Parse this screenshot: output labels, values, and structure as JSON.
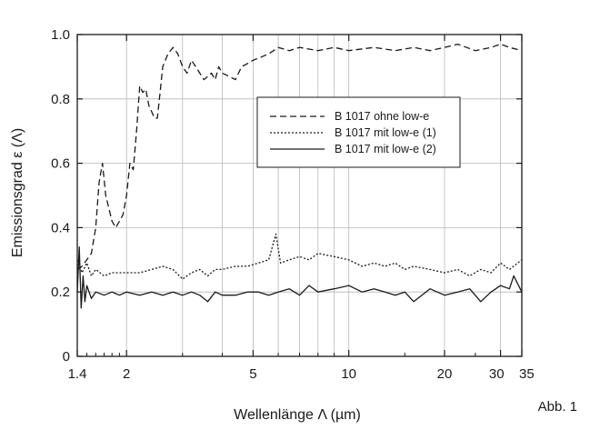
{
  "figure_label": "Abb. 1",
  "chart_data": {
    "type": "line",
    "title": "",
    "xlabel": "Wellenlänge Λ (µm)",
    "ylabel": "Emissionsgrad ε (Λ)",
    "x_scale": "log",
    "xlim": [
      1.4,
      35
    ],
    "ylim": [
      0,
      1.0
    ],
    "grid": true,
    "legend_position": "inside-top-right",
    "x_ticks": [
      1.4,
      2,
      5,
      10,
      20,
      30,
      35
    ],
    "x_tick_labels": [
      "1.4",
      "2",
      "5",
      "10",
      "20",
      "30",
      "35"
    ],
    "y_ticks": [
      0,
      0.2,
      0.4,
      0.6,
      0.8,
      1.0
    ],
    "y_tick_labels": [
      "0",
      "0.2",
      "0.4",
      "0.6",
      "0.8",
      "1.0"
    ],
    "series": [
      {
        "name": "B 1017 ohne low-e",
        "style": "dashed",
        "x": [
          1.4,
          1.45,
          1.5,
          1.55,
          1.6,
          1.64,
          1.68,
          1.72,
          1.76,
          1.8,
          1.85,
          1.9,
          1.95,
          2.0,
          2.05,
          2.1,
          2.15,
          2.2,
          2.25,
          2.3,
          2.35,
          2.4,
          2.45,
          2.5,
          2.55,
          2.6,
          2.65,
          2.7,
          2.8,
          2.9,
          3.0,
          3.1,
          3.2,
          3.3,
          3.4,
          3.5,
          3.6,
          3.7,
          3.8,
          3.9,
          4.0,
          4.2,
          4.4,
          4.6,
          4.8,
          5.0,
          5.3,
          5.6,
          6.0,
          6.5,
          7,
          8,
          9,
          10,
          12,
          14,
          16,
          18,
          20,
          22,
          25,
          28,
          30,
          32,
          35
        ],
        "y": [
          0.27,
          0.28,
          0.3,
          0.32,
          0.4,
          0.54,
          0.6,
          0.5,
          0.46,
          0.42,
          0.4,
          0.42,
          0.44,
          0.5,
          0.6,
          0.58,
          0.7,
          0.84,
          0.82,
          0.83,
          0.78,
          0.76,
          0.74,
          0.74,
          0.82,
          0.9,
          0.92,
          0.94,
          0.96,
          0.94,
          0.9,
          0.88,
          0.92,
          0.9,
          0.88,
          0.86,
          0.87,
          0.88,
          0.86,
          0.9,
          0.88,
          0.87,
          0.86,
          0.9,
          0.91,
          0.92,
          0.93,
          0.94,
          0.96,
          0.95,
          0.96,
          0.95,
          0.96,
          0.95,
          0.96,
          0.95,
          0.96,
          0.95,
          0.96,
          0.97,
          0.95,
          0.96,
          0.97,
          0.96,
          0.95
        ]
      },
      {
        "name": "B 1017 mit low-e (1)",
        "style": "dotted",
        "x": [
          1.4,
          1.45,
          1.5,
          1.55,
          1.6,
          1.7,
          1.8,
          1.9,
          2.0,
          2.2,
          2.4,
          2.6,
          2.8,
          3.0,
          3.2,
          3.4,
          3.6,
          3.8,
          4.0,
          4.4,
          4.8,
          5.2,
          5.6,
          5.9,
          6.1,
          6.5,
          7,
          7.5,
          8,
          9,
          10,
          11,
          12,
          13,
          14,
          15,
          16,
          18,
          20,
          22,
          24,
          26,
          28,
          30,
          32,
          35
        ],
        "y": [
          0.3,
          0.26,
          0.29,
          0.25,
          0.27,
          0.25,
          0.26,
          0.26,
          0.26,
          0.26,
          0.27,
          0.28,
          0.27,
          0.24,
          0.26,
          0.27,
          0.25,
          0.27,
          0.27,
          0.28,
          0.28,
          0.29,
          0.3,
          0.38,
          0.29,
          0.3,
          0.31,
          0.3,
          0.32,
          0.31,
          0.3,
          0.28,
          0.29,
          0.28,
          0.29,
          0.27,
          0.28,
          0.27,
          0.26,
          0.27,
          0.25,
          0.27,
          0.26,
          0.29,
          0.27,
          0.3
        ]
      },
      {
        "name": "B 1017 mit low-e (2)",
        "style": "solid",
        "x": [
          1.4,
          1.42,
          1.44,
          1.46,
          1.48,
          1.5,
          1.55,
          1.6,
          1.7,
          1.8,
          1.9,
          2.0,
          2.2,
          2.4,
          2.6,
          2.8,
          3.0,
          3.2,
          3.4,
          3.6,
          3.8,
          4.0,
          4.4,
          4.8,
          5.2,
          5.6,
          6.0,
          6.5,
          7,
          7.5,
          8,
          9,
          10,
          11,
          12,
          13,
          14,
          15,
          16,
          18,
          20,
          22,
          24,
          26,
          28,
          30,
          32,
          33,
          35
        ],
        "y": [
          0.2,
          0.34,
          0.15,
          0.25,
          0.17,
          0.22,
          0.18,
          0.2,
          0.19,
          0.2,
          0.19,
          0.2,
          0.19,
          0.2,
          0.19,
          0.2,
          0.19,
          0.2,
          0.19,
          0.17,
          0.2,
          0.19,
          0.19,
          0.2,
          0.2,
          0.19,
          0.2,
          0.21,
          0.19,
          0.22,
          0.2,
          0.21,
          0.22,
          0.2,
          0.21,
          0.2,
          0.19,
          0.2,
          0.17,
          0.21,
          0.19,
          0.2,
          0.21,
          0.17,
          0.2,
          0.22,
          0.21,
          0.25,
          0.2
        ]
      }
    ]
  }
}
